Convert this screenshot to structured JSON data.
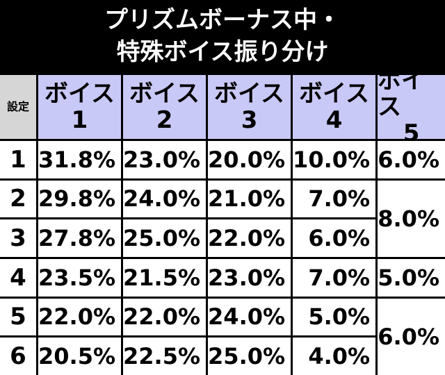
{
  "title": [
    "プリズムボーナス中・",
    "特殊ボイス振り分け"
  ],
  "table": {
    "header": [
      [
        "設定"
      ],
      [
        "ボイス",
        "1"
      ],
      [
        "ボイス",
        "2"
      ],
      [
        "ボイス",
        "3"
      ],
      [
        "ボイス",
        "4"
      ],
      [
        "ボイス",
        "5"
      ]
    ],
    "rows": [
      [
        "1",
        "31.8%",
        "23.0%",
        "20.0%",
        "10.0%",
        "6.0%"
      ],
      [
        "2",
        "29.8%",
        "24.0%",
        "21.0%",
        "7.0%",
        "8.0%"
      ],
      [
        "3",
        "27.8%",
        "25.0%",
        "22.0%",
        "6.0%"
      ],
      [
        "4",
        "23.5%",
        "21.5%",
        "23.0%",
        "7.0%",
        "5.0%"
      ],
      [
        "5",
        "22.0%",
        "22.0%",
        "24.0%",
        "5.0%",
        "6.0%"
      ],
      [
        "6",
        "20.5%",
        "22.5%",
        "25.0%",
        "4.0%"
      ]
    ]
  }
}
